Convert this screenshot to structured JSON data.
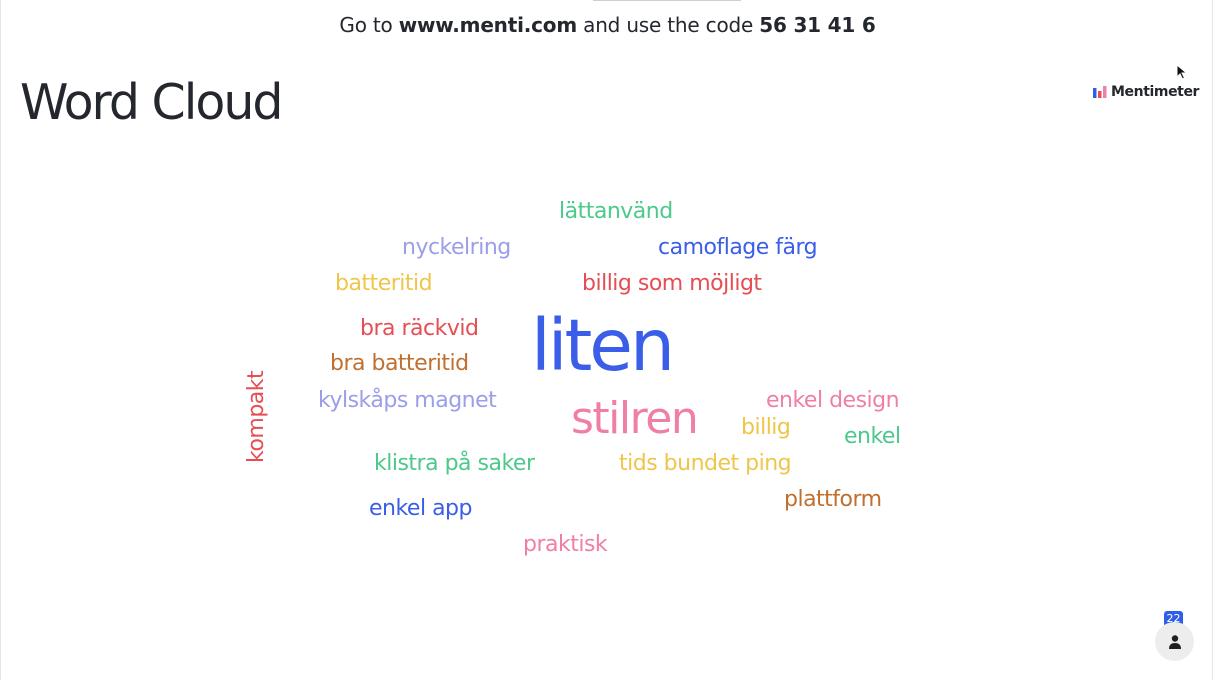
{
  "header": {
    "prefix": "Go to ",
    "url": "www.menti.com",
    "middle": " and use the code ",
    "code": "56 31 41 6"
  },
  "title": "Word Cloud",
  "brand": {
    "name": "Mentimeter",
    "icon": "mentimeter-logo-icon"
  },
  "colors": {
    "green": "#4cc98b",
    "purple": "#9b9ee8",
    "blue": "#3b5ee8",
    "yellow": "#efc54a",
    "red": "#e54e54",
    "brown": "#c16f2e",
    "pink": "#ef7fa6"
  },
  "words": [
    {
      "text": "lättanvänd",
      "color": "green"
    },
    {
      "text": "nyckelring",
      "color": "purple"
    },
    {
      "text": "camoflage färg",
      "color": "blue"
    },
    {
      "text": "batteritid",
      "color": "yellow"
    },
    {
      "text": "billig som möjligt",
      "color": "red"
    },
    {
      "text": "bra räckvid",
      "color": "red"
    },
    {
      "text": "liten",
      "color": "blue"
    },
    {
      "text": "bra batteritid",
      "color": "brown"
    },
    {
      "text": "kompakt",
      "color": "red"
    },
    {
      "text": "kylskåps magnet",
      "color": "purple"
    },
    {
      "text": "stilren",
      "color": "pink"
    },
    {
      "text": "enkel design",
      "color": "pink"
    },
    {
      "text": "billig",
      "color": "yellow"
    },
    {
      "text": "enkel",
      "color": "green"
    },
    {
      "text": "klistra på saker",
      "color": "green"
    },
    {
      "text": "tids bundet ping",
      "color": "yellow"
    },
    {
      "text": "plattform",
      "color": "brown"
    },
    {
      "text": "enkel app",
      "color": "blue"
    },
    {
      "text": "praktisk",
      "color": "pink"
    }
  ],
  "participants": {
    "count": "22",
    "icon": "person-icon"
  }
}
